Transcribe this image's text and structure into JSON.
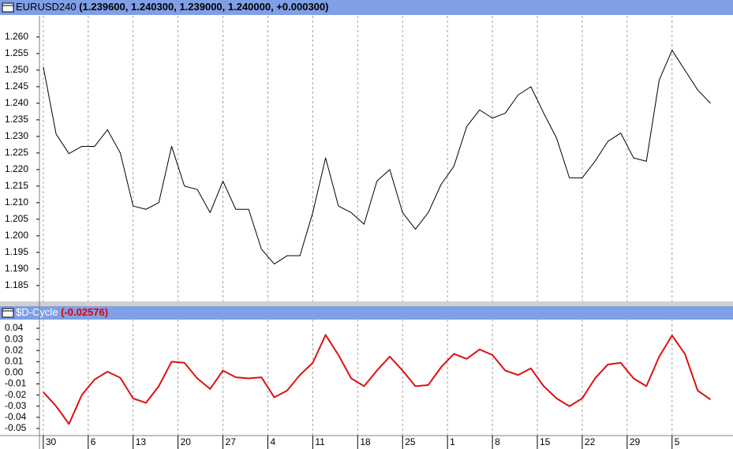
{
  "chart_data": [
    {
      "type": "line",
      "title": "EURUSD240",
      "subtitle": "(1.239600, 1.240300, 1.239000, 1.240000, +0.000300)",
      "xlim": [
        -0.6,
        107.5
      ],
      "ylim": [
        1.1802,
        1.2664
      ],
      "yticks": [
        {
          "value": 1.26,
          "label": "1.260"
        },
        1.255,
        {
          "value": 1.25,
          "label": "1.250"
        },
        1.245,
        {
          "value": 1.24,
          "label": "1.240"
        },
        1.235,
        {
          "value": 1.23,
          "label": "1.230"
        },
        1.225,
        {
          "value": 1.22,
          "label": "1.220"
        },
        1.215,
        {
          "value": 1.21,
          "label": "1.210"
        },
        1.205,
        {
          "value": 1.2,
          "label": "1.200"
        },
        1.195,
        {
          "value": 1.19,
          "label": "1.190"
        },
        1.185
      ],
      "grid": true,
      "x": [
        0,
        2,
        4,
        6,
        8,
        10,
        12,
        14,
        16,
        18,
        20,
        22,
        24,
        26,
        28,
        30,
        32,
        34,
        36,
        38,
        40,
        42,
        44,
        46,
        48,
        50,
        52,
        54,
        56,
        58,
        60,
        62,
        64,
        66,
        68,
        70,
        72,
        74,
        76,
        78,
        80,
        82,
        84,
        86,
        88,
        90,
        92,
        94,
        96,
        98,
        100,
        102,
        104
      ],
      "series": [
        {
          "color": "#000000",
          "values": [
            1.251,
            1.2307,
            1.2248,
            1.227,
            1.227,
            1.232,
            1.225,
            1.209,
            1.208,
            1.21,
            1.227,
            1.215,
            1.214,
            1.207,
            1.2165,
            1.208,
            1.208,
            1.196,
            1.1915,
            1.194,
            1.194,
            1.207,
            1.2235,
            1.209,
            1.207,
            1.2035,
            1.2165,
            1.22,
            1.207,
            1.202,
            1.207,
            1.2155,
            1.221,
            1.233,
            1.238,
            1.2355,
            1.237,
            1.2425,
            1.245,
            1.237,
            1.2295,
            1.2175,
            1.2175,
            1.2225,
            1.2285,
            1.231,
            1.2235,
            1.2225,
            1.247,
            1.256,
            1.25,
            1.244,
            1.24
          ]
        }
      ]
    },
    {
      "type": "line",
      "title": "$D-Cycle",
      "subtitle": "(-0.02576)",
      "xlim": [
        -0.6,
        107.5
      ],
      "ylim": [
        -0.0564,
        0.0478
      ],
      "xticks": [
        {
          "value": 0,
          "label": "30"
        },
        {
          "value": 7,
          "label": "6"
        },
        {
          "value": 14,
          "label": "13"
        },
        {
          "value": 21,
          "label": "20"
        },
        {
          "value": 28,
          "label": "27"
        },
        {
          "value": 35,
          "label": "4"
        },
        {
          "value": 42,
          "label": "11"
        },
        {
          "value": 49,
          "label": "18"
        },
        {
          "value": 56,
          "label": "25"
        },
        {
          "value": 63,
          "label": "1"
        },
        {
          "value": 70,
          "label": "8"
        },
        {
          "value": 77,
          "label": "15"
        },
        {
          "value": 84,
          "label": "22"
        },
        {
          "value": 91,
          "label": "29"
        },
        {
          "value": 98,
          "label": "5"
        }
      ],
      "yticks": [
        0.04,
        0.03,
        0.02,
        0.01,
        {
          "value": 0,
          "label": "0.00"
        },
        -0.01,
        -0.02,
        -0.03,
        -0.04,
        -0.05
      ],
      "grid": true,
      "x": [
        0,
        2,
        4,
        6,
        8,
        10,
        12,
        14,
        16,
        18,
        20,
        22,
        24,
        26,
        28,
        30,
        32,
        34,
        36,
        38,
        40,
        42,
        44,
        46,
        48,
        50,
        52,
        54,
        56,
        58,
        60,
        62,
        64,
        66,
        68,
        70,
        72,
        74,
        76,
        78,
        80,
        82,
        84,
        86,
        88,
        90,
        92,
        94,
        96,
        98,
        100,
        102,
        104
      ],
      "series": [
        {
          "color": "#dd1111",
          "values": [
            -0.0174,
            -0.03,
            -0.046,
            -0.02,
            -0.006,
            0.001,
            -0.0045,
            -0.023,
            -0.027,
            -0.012,
            0.01,
            0.009,
            -0.005,
            -0.0145,
            0.002,
            -0.004,
            -0.005,
            -0.004,
            -0.022,
            -0.016,
            -0.002,
            0.009,
            0.034,
            0.016,
            -0.005,
            -0.012,
            0.002,
            0.0145,
            0.002,
            -0.012,
            -0.011,
            0.005,
            0.017,
            0.0125,
            0.021,
            0.016,
            0.002,
            -0.002,
            0.004,
            -0.012,
            -0.023,
            -0.03,
            -0.023,
            -0.005,
            0.0075,
            0.009,
            -0.005,
            -0.012,
            0.0145,
            0.0336,
            0.017,
            -0.016,
            -0.024
          ]
        }
      ]
    }
  ]
}
